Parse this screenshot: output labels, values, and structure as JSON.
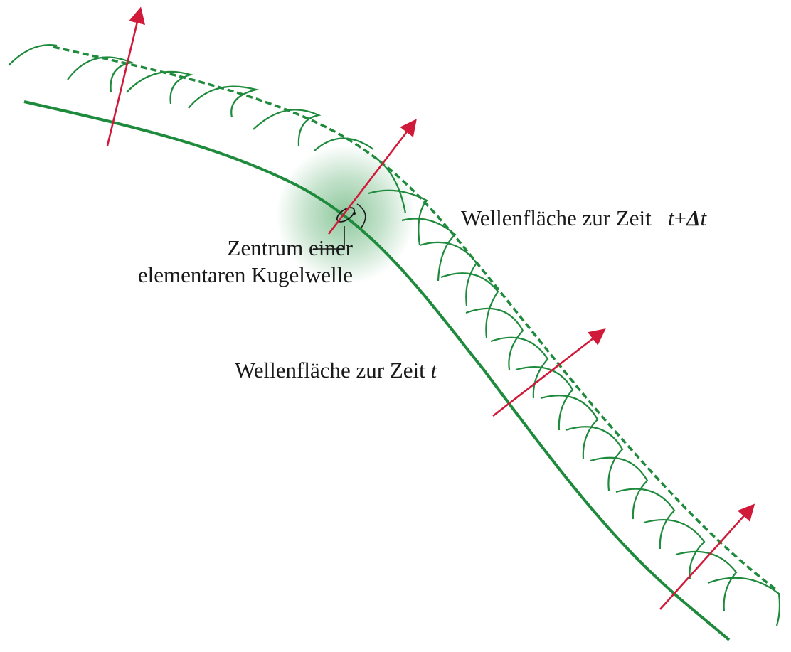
{
  "labels": {
    "center_line1": "Zentrum einer",
    "center_line2": "elementaren Kugelwelle",
    "wavefront_t_dt_prefix": "Wellenfläche zur Zeit",
    "wavefront_t_dt_t": "t",
    "wavefront_t_dt_plus": "+",
    "wavefront_t_dt_delta": "Δ",
    "wavefront_t_dt_t2": "t",
    "wavefront_t_prefix": "Wellenfläche zur Zeit",
    "wavefront_t_t": "t"
  },
  "colors": {
    "wavefront_green": "#1e8a3c",
    "arrow_red": "#d11a3a",
    "glow_green": "#2f9a4a"
  }
}
